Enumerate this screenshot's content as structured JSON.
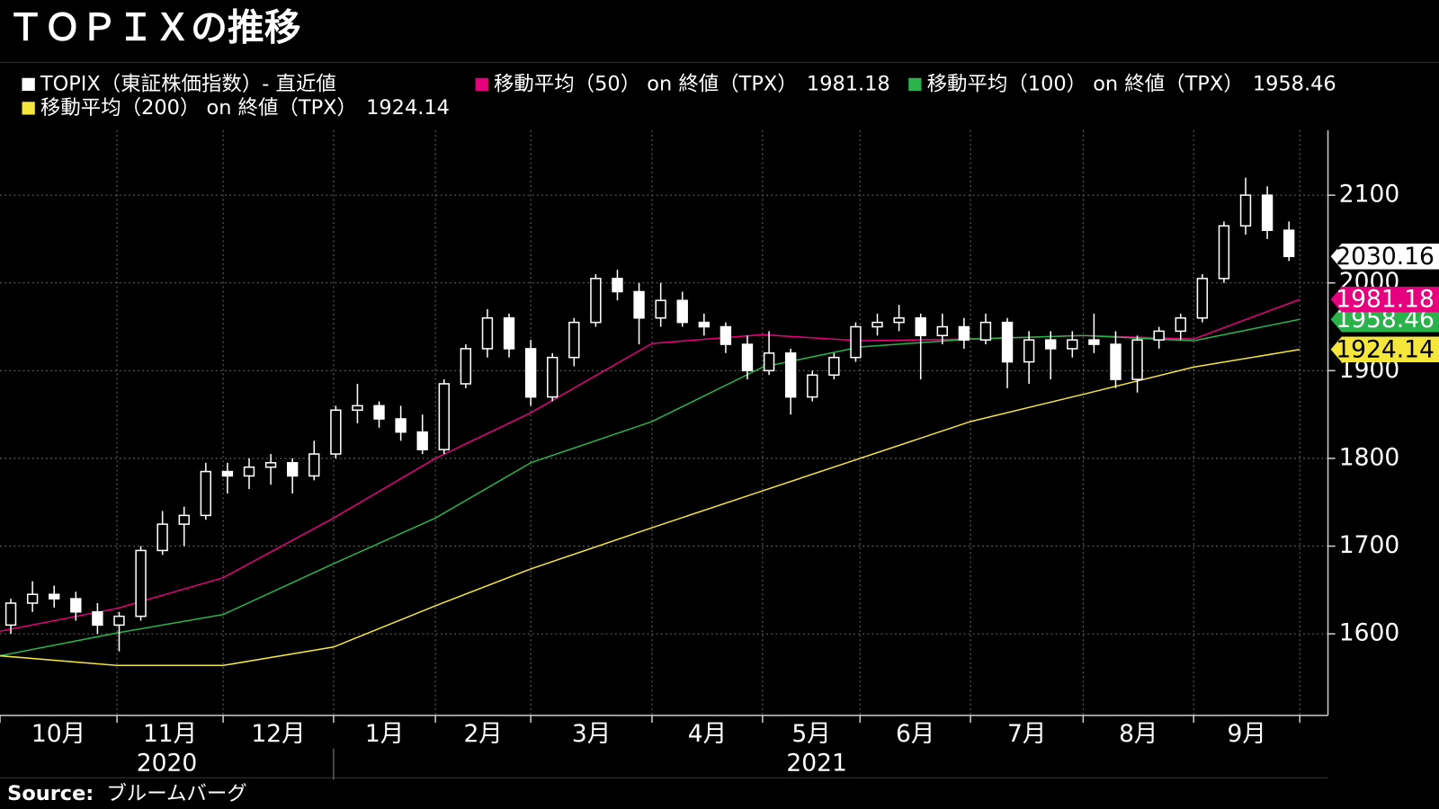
{
  "chart_data": {
    "type": "candlestick",
    "title": "ＴＯＰＩＸの推移",
    "candles": {
      "name": "TOPIX（東証株価指数）- 直近値",
      "color": "#ffffff",
      "open": [
        1610,
        1635,
        1645,
        1640,
        1625,
        1610,
        1620,
        1695,
        1725,
        1735,
        1785,
        1780,
        1790,
        1795,
        1780,
        1805,
        1855,
        1860,
        1845,
        1830,
        1810,
        1885,
        1925,
        1960,
        1925,
        1870,
        1915,
        1955,
        2005,
        1990,
        1960,
        1980,
        1955,
        1950,
        1930,
        1900,
        1920,
        1870,
        1895,
        1915,
        1950,
        1955,
        1960,
        1940,
        1950,
        1935,
        1955,
        1910,
        1935,
        1925,
        1935,
        1930,
        1890,
        1935,
        1945,
        1960,
        2005,
        2065,
        2100,
        2060
      ],
      "high": [
        1640,
        1660,
        1655,
        1648,
        1635,
        1625,
        1700,
        1740,
        1745,
        1795,
        1795,
        1800,
        1805,
        1800,
        1820,
        1860,
        1885,
        1865,
        1860,
        1850,
        1890,
        1930,
        1970,
        1965,
        1935,
        1920,
        1960,
        2010,
        2015,
        2000,
        2000,
        1990,
        1965,
        1955,
        1940,
        1945,
        1925,
        1900,
        1920,
        1955,
        1965,
        1975,
        1965,
        1965,
        1960,
        1965,
        1960,
        1945,
        1945,
        1945,
        1965,
        1945,
        1940,
        1950,
        1965,
        2010,
        2070,
        2120,
        2110,
        2070
      ],
      "low": [
        1600,
        1625,
        1630,
        1615,
        1600,
        1580,
        1615,
        1690,
        1700,
        1730,
        1760,
        1765,
        1770,
        1760,
        1775,
        1800,
        1840,
        1835,
        1820,
        1805,
        1805,
        1880,
        1915,
        1915,
        1860,
        1865,
        1905,
        1950,
        1980,
        1930,
        1950,
        1950,
        1940,
        1920,
        1890,
        1895,
        1850,
        1865,
        1890,
        1910,
        1940,
        1945,
        1890,
        1930,
        1925,
        1930,
        1880,
        1885,
        1890,
        1915,
        1920,
        1880,
        1875,
        1925,
        1935,
        1955,
        2000,
        2055,
        2050,
        2025
      ],
      "close": [
        1635,
        1645,
        1640,
        1625,
        1610,
        1620,
        1695,
        1725,
        1735,
        1785,
        1780,
        1790,
        1795,
        1780,
        1805,
        1855,
        1860,
        1845,
        1830,
        1810,
        1885,
        1925,
        1960,
        1925,
        1870,
        1915,
        1955,
        2005,
        1990,
        1960,
        1980,
        1955,
        1950,
        1930,
        1900,
        1920,
        1870,
        1895,
        1915,
        1950,
        1955,
        1960,
        1940,
        1950,
        1935,
        1955,
        1910,
        1935,
        1925,
        1935,
        1930,
        1890,
        1935,
        1945,
        1960,
        2005,
        2065,
        2100,
        2060,
        2030.16
      ]
    },
    "series": [
      {
        "name": "移動平均（50） on 終値（TPX）",
        "color": "#e6007e",
        "x": [
          0,
          5.4,
          10.3,
          15.4,
          20.1,
          24.5,
          30.1,
          35.2,
          39.7,
          44.8,
          50,
          55.1,
          60
        ],
        "values": [
          1603,
          1629,
          1664,
          1732,
          1800,
          1852,
          1931,
          1941,
          1934,
          1936,
          1940,
          1936,
          1981.18
        ]
      },
      {
        "name": "移動平均（100） on 終値（TPX）",
        "color": "#2ab34a",
        "x": [
          0,
          5.4,
          10.3,
          15.4,
          20.1,
          24.5,
          30.1,
          35.2,
          39.7,
          44.8,
          50,
          55.1,
          60
        ],
        "values": [
          1575,
          1601,
          1622,
          1680,
          1732,
          1795,
          1842,
          1904,
          1927,
          1936,
          1940,
          1934,
          1958.46
        ]
      },
      {
        "name": "移動平均（200） on 終値（TPX）",
        "color": "#f5e63c",
        "x": [
          0,
          5.4,
          10.3,
          15.4,
          20.1,
          24.5,
          30.1,
          35.2,
          39.7,
          44.8,
          50,
          55.1,
          60
        ],
        "values": [
          1575,
          1564,
          1564,
          1585,
          1632,
          1674,
          1721,
          1763,
          1800,
          1842,
          1873,
          1904,
          1924.14
        ]
      }
    ],
    "categories": [
      "10月",
      "11月",
      "12月",
      "1月",
      "2月",
      "3月",
      "4月",
      "5月",
      "6月",
      "7月",
      "8月",
      "9月"
    ],
    "x_bounds": [
      0,
      5.4,
      10.3,
      15.4,
      20.1,
      24.5,
      30.1,
      35.2,
      39.7,
      44.8,
      50,
      55.1,
      60
    ],
    "years": [
      {
        "label": "2020",
        "start": 0,
        "end": 15.4
      },
      {
        "label": "2021",
        "start": 15.4,
        "end": 60
      }
    ],
    "xlim": [
      0,
      61.3
    ],
    "ylim": [
      1507,
      2174
    ],
    "yticks": [
      1600,
      1700,
      1800,
      1900,
      2000,
      2100
    ],
    "grid": true,
    "source_label": "Source:",
    "source": "ブルームバーグ"
  }
}
